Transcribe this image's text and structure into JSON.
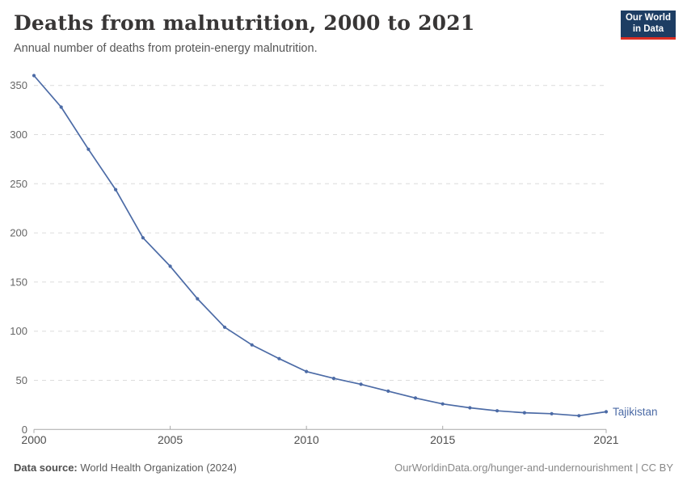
{
  "header": {
    "title": "Deaths from malnutrition, 2000 to 2021",
    "subtitle": "Annual number of deaths from protein-energy malnutrition."
  },
  "logo": {
    "line1": "Our World",
    "line2": "in Data",
    "bg_color": "#1d3d63",
    "accent_color": "#dc2e22"
  },
  "chart_data": {
    "type": "line",
    "title": "Deaths from malnutrition, 2000 to 2021",
    "xlabel": "",
    "ylabel": "",
    "x": [
      2000,
      2001,
      2002,
      2003,
      2004,
      2005,
      2006,
      2007,
      2008,
      2009,
      2010,
      2011,
      2012,
      2013,
      2014,
      2015,
      2016,
      2017,
      2018,
      2019,
      2020,
      2021
    ],
    "series": [
      {
        "name": "Tajikistan",
        "color": "#4c6ba6",
        "values": [
          360,
          328,
          285,
          244,
          195,
          166,
          133,
          104,
          86,
          72,
          59,
          52,
          46,
          39,
          32,
          26,
          22,
          19,
          17,
          16,
          14,
          18
        ]
      }
    ],
    "ylim": [
      0,
      350
    ],
    "yticks": [
      0,
      50,
      100,
      150,
      200,
      250,
      300,
      350
    ],
    "xticks": [
      2000,
      2005,
      2010,
      2015,
      2021
    ],
    "grid": "horizontal-dashed",
    "grid_color": "#dcdcdc",
    "axis_color": "#a8a8a8",
    "ytick_label_color": "#666666",
    "xtick_label_color": "#4e4e4e",
    "legend_position": "end-of-line"
  },
  "footer": {
    "source_label": "Data source:",
    "source_value": " World Health Organization (2024)",
    "link": "OurWorldinData.org/hunger-and-undernourishment | CC BY"
  }
}
